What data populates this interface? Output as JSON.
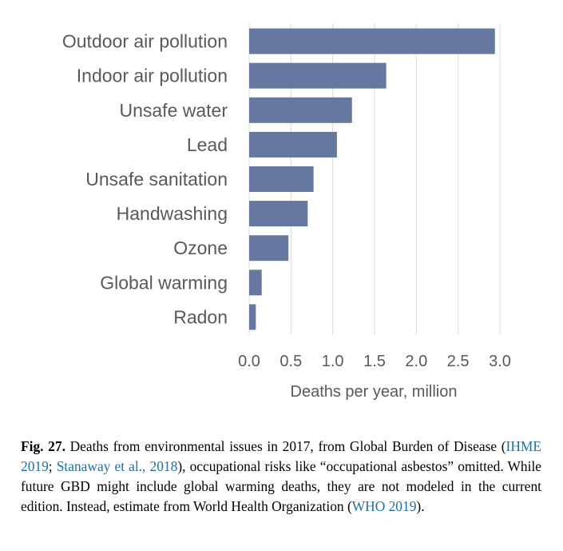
{
  "chart_data": {
    "type": "bar",
    "orientation": "horizontal",
    "categories": [
      "Outdoor air pollution",
      "Indoor air pollution",
      "Unsafe water",
      "Lead",
      "Unsafe sanitation",
      "Handwashing",
      "Ozone",
      "Global warming",
      "Radon"
    ],
    "values": [
      2.94,
      1.64,
      1.23,
      1.05,
      0.77,
      0.7,
      0.47,
      0.15,
      0.08
    ],
    "xlabel": "Deaths per year, million",
    "ylabel": "",
    "xlim": [
      0,
      3.0
    ],
    "xticks": [
      "0.0",
      "0.5",
      "1.0",
      "1.5",
      "2.0",
      "2.5",
      "3.0"
    ],
    "grid": true,
    "bar_color": "#66789f",
    "grid_color": "#d9d9d9",
    "label_color": "#595959"
  },
  "caption": {
    "fig_label": "Fig. 27.",
    "text_1": " Deaths from environmental issues in 2017, from Global Burden of Disease (",
    "cite_1": "IHME 2019",
    "text_2": "; ",
    "cite_2": "Stanaway et al., 2018",
    "text_3": "), occupational risks like “occupational asbestos” omitted. While future GBD might include global warming deaths, they are not modeled in the current edition. Instead, estimate from World Health Organization (",
    "cite_3": "WHO 2019",
    "text_4": ").",
    "cite_color": "#1f6fa3"
  }
}
